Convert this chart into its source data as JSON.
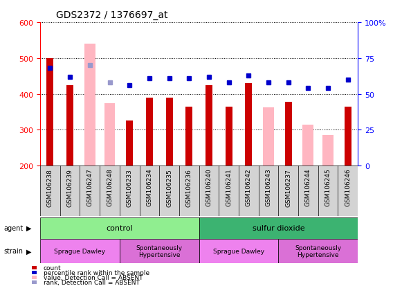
{
  "title": "GDS2372 / 1376697_at",
  "samples": [
    "GSM106238",
    "GSM106239",
    "GSM106247",
    "GSM106248",
    "GSM106233",
    "GSM106234",
    "GSM106235",
    "GSM106236",
    "GSM106240",
    "GSM106241",
    "GSM106242",
    "GSM106243",
    "GSM106237",
    "GSM106244",
    "GSM106245",
    "GSM106246"
  ],
  "count_values": [
    500,
    425,
    null,
    null,
    325,
    390,
    390,
    365,
    425,
    365,
    430,
    null,
    378,
    null,
    null,
    365
  ],
  "absent_values": [
    null,
    null,
    540,
    375,
    null,
    null,
    null,
    null,
    null,
    null,
    null,
    362,
    null,
    315,
    285,
    null
  ],
  "rank_values": [
    68,
    62,
    70,
    58,
    56,
    61,
    61,
    61,
    62,
    58,
    63,
    58,
    58,
    54,
    54,
    60
  ],
  "rank_absent": [
    false,
    false,
    true,
    true,
    false,
    false,
    false,
    false,
    false,
    false,
    false,
    false,
    false,
    false,
    false,
    false
  ],
  "ylim": [
    200,
    600
  ],
  "yticks": [
    200,
    300,
    400,
    500,
    600
  ],
  "y2lim": [
    0,
    100
  ],
  "y2ticks": [
    0,
    25,
    50,
    75,
    100
  ],
  "y2labels": [
    "0",
    "25",
    "50",
    "75",
    "100%"
  ],
  "agent_groups": [
    {
      "label": "control",
      "start": 0,
      "end": 8,
      "color": "#90ee90"
    },
    {
      "label": "sulfur dioxide",
      "start": 8,
      "end": 16,
      "color": "#3cb371"
    }
  ],
  "strain_groups": [
    {
      "label": "Sprague Dawley",
      "start": 0,
      "end": 4,
      "color": "#ee82ee"
    },
    {
      "label": "Spontaneously\nHypertensive",
      "start": 4,
      "end": 8,
      "color": "#da70d6"
    },
    {
      "label": "Sprague Dawley",
      "start": 8,
      "end": 12,
      "color": "#ee82ee"
    },
    {
      "label": "Spontaneously\nHypertensive",
      "start": 12,
      "end": 16,
      "color": "#da70d6"
    }
  ],
  "absent_color": "#ffb6c1",
  "rank_color": "#0000cc",
  "rank_absent_color": "#9999cc",
  "bar_color": "#cc0000",
  "absent_bar_width": 0.55,
  "present_bar_width": 0.35
}
